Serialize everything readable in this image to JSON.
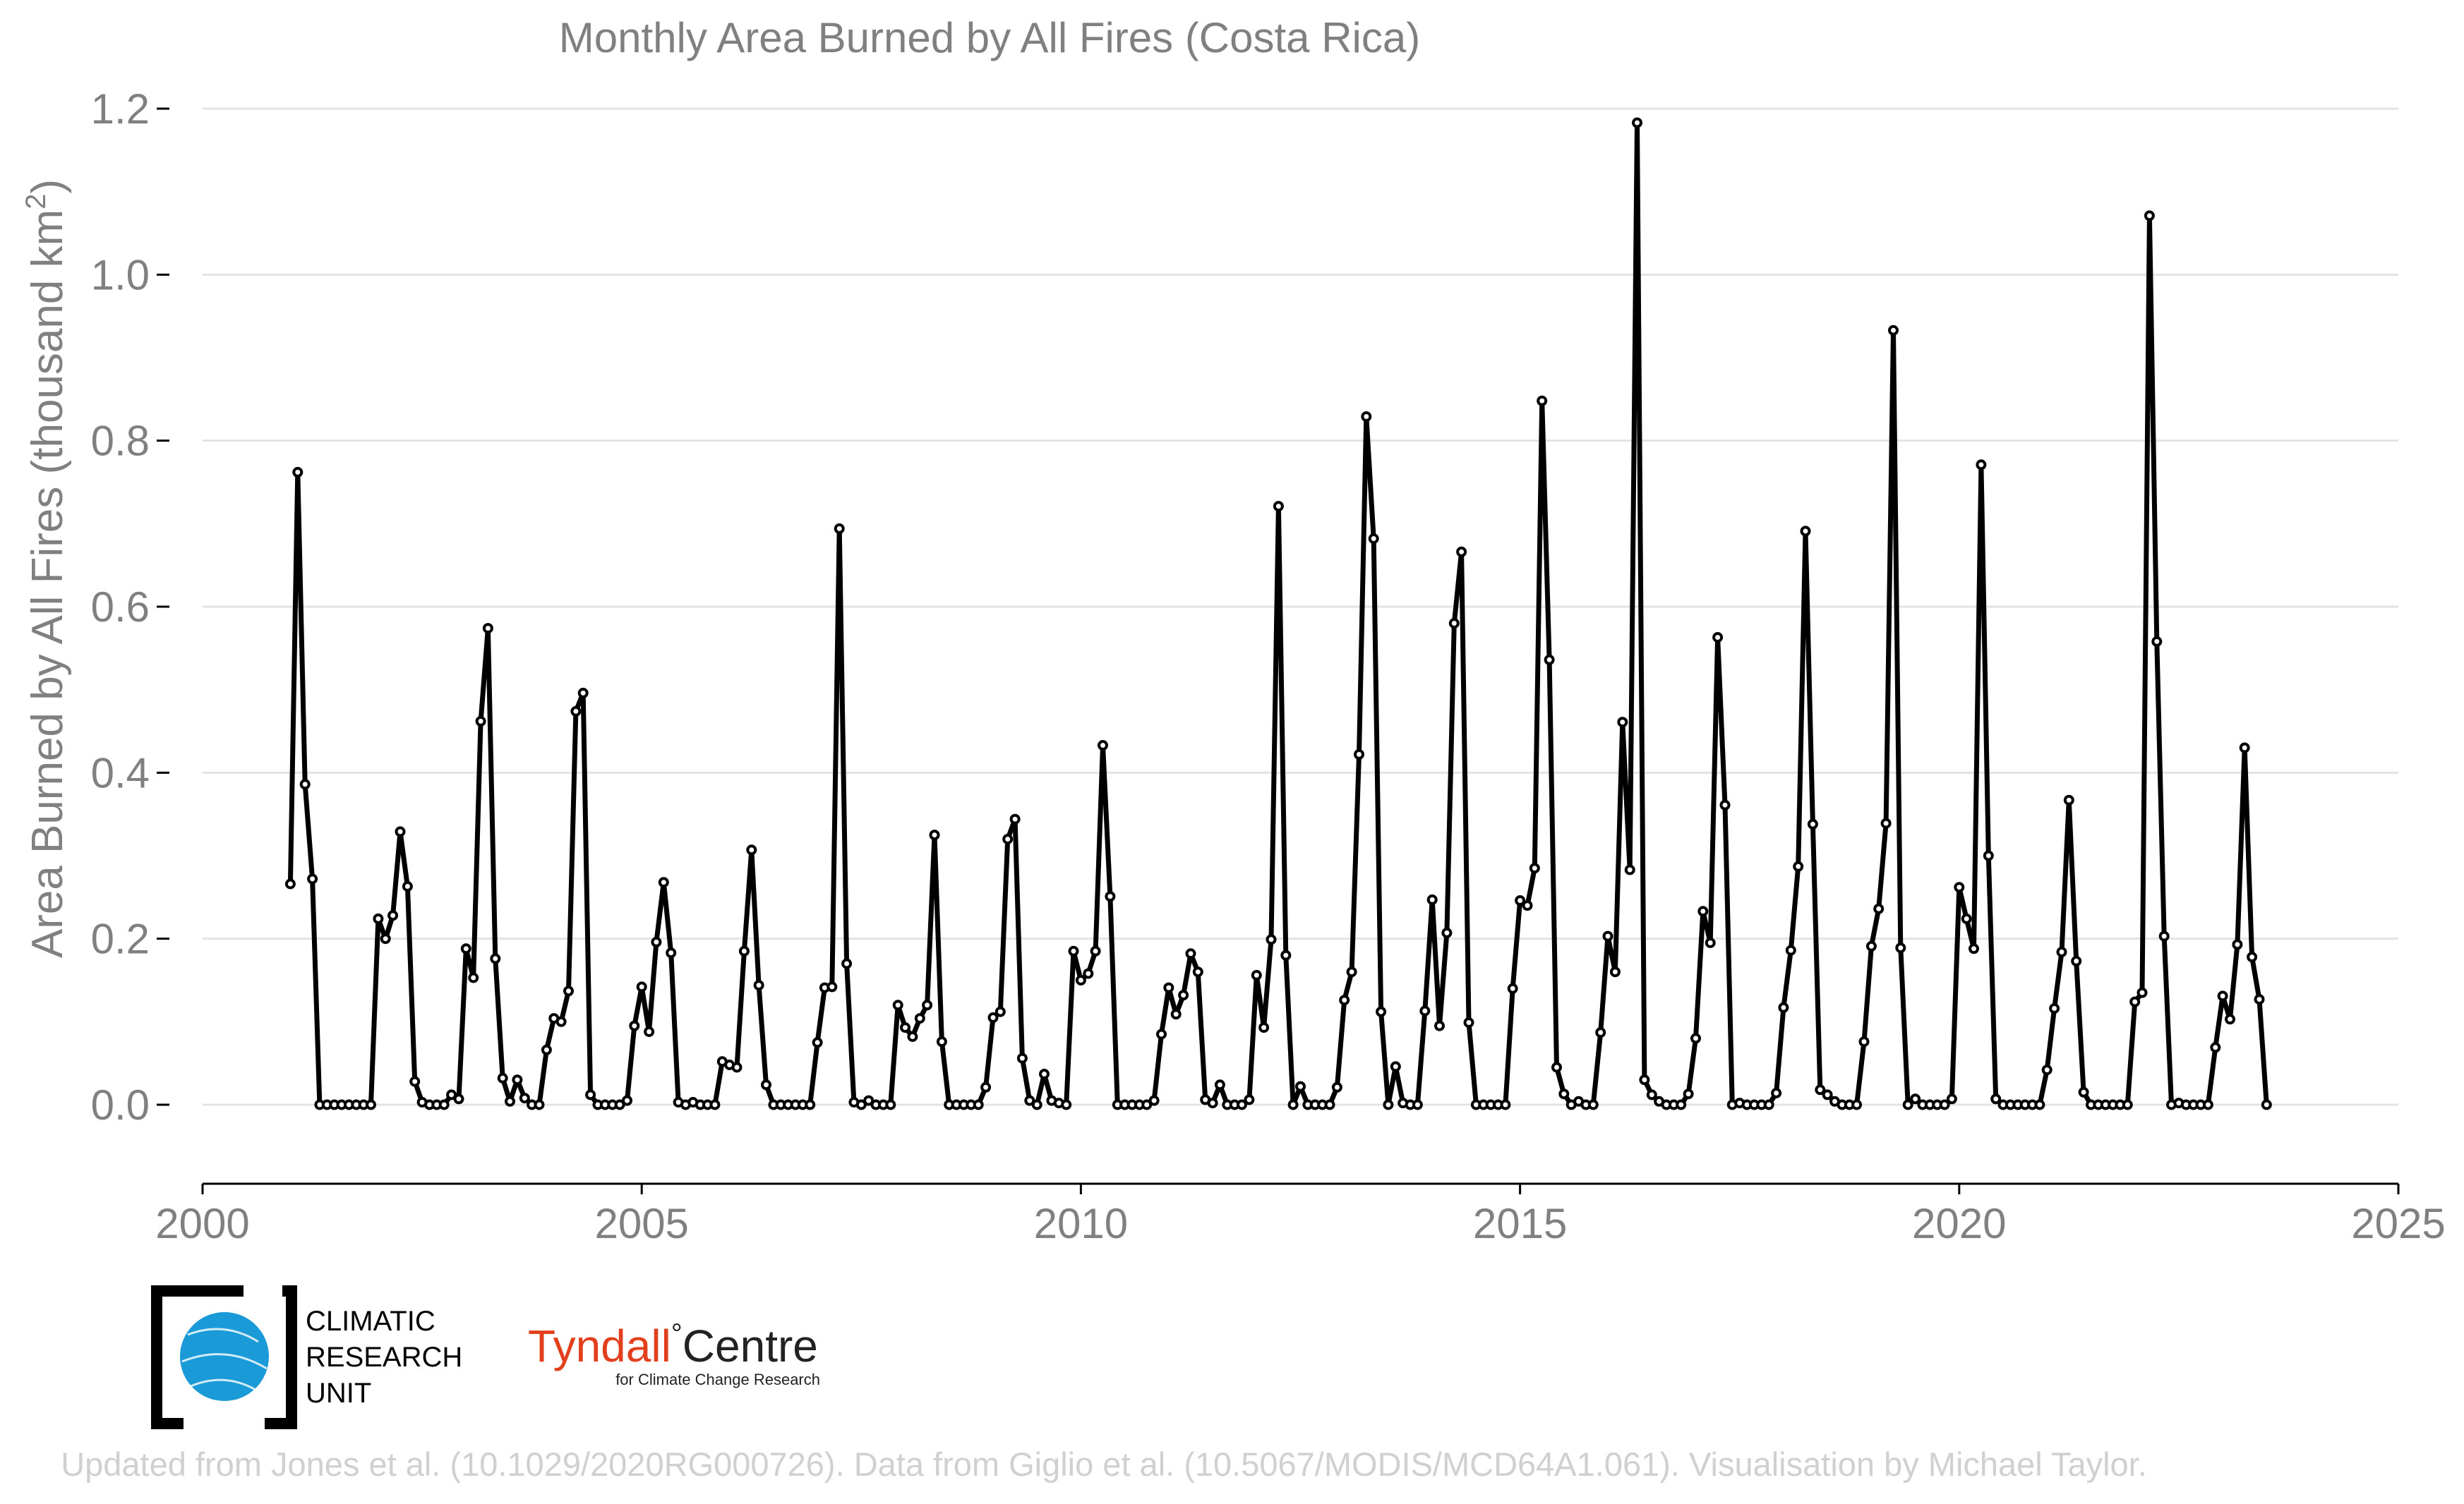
{
  "colors": {
    "line": "#000000",
    "marker_fill": "#ffffff",
    "text_gray": "#808080",
    "grid": "#e3e3e3",
    "credit": "#d0d0d0",
    "cru_blue": "#1a9ad6",
    "tyndall_red": "#e2401c"
  },
  "logos": {
    "cru": [
      "CLIMATIC",
      "RESEARCH",
      "UNIT"
    ],
    "tyndall_main_a": "Tyndall",
    "tyndall_degree": "°",
    "tyndall_main_b": "Centre",
    "tyndall_sub": "for Climate Change Research"
  },
  "credit": "Updated from Jones et al. (10.1029/2020RG000726). Data from Giglio et al. (10.5067/MODIS/MCD64A1.061). Visualisation by Michael Taylor.",
  "chart_data": {
    "type": "line",
    "title": "Monthly Area Burned by All Fires (Costa Rica)",
    "ylabel_main": "Area Burned by All Fires (thousand km",
    "ylabel_sup": "2",
    "ylabel_end": ")",
    "xlabel": "",
    "xlim": [
      2000,
      2025
    ],
    "ylim": [
      -0.09,
      1.2
    ],
    "xticks": [
      2000,
      2005,
      2010,
      2015,
      2020,
      2025
    ],
    "yticks": [
      0.0,
      0.2,
      0.4,
      0.6,
      0.8,
      1.0,
      1.2
    ],
    "ytick_labels": [
      "0.0",
      "0.2",
      "0.4",
      "0.6",
      "0.8",
      "1.0",
      "1.2"
    ],
    "grid": true,
    "legend": "none",
    "x_start": "2001-01",
    "x_step": "1 month",
    "series": [
      {
        "values": [
          0.266,
          0.762,
          0.386,
          0.272,
          0.0,
          0.0,
          0.0,
          0.0,
          0.0,
          0.0,
          0.0,
          0.0,
          0.224,
          0.2,
          0.228,
          0.329,
          0.263,
          0.028,
          0.003,
          0.0,
          0.0,
          0.0,
          0.012,
          0.007,
          0.188,
          0.153,
          0.462,
          0.574,
          0.176,
          0.032,
          0.004,
          0.03,
          0.008,
          0.0,
          0.0,
          0.066,
          0.104,
          0.1,
          0.137,
          0.474,
          0.496,
          0.012,
          0.0,
          0.0,
          0.0,
          0.0,
          0.005,
          0.095,
          0.142,
          0.088,
          0.196,
          0.268,
          0.183,
          0.003,
          0.0,
          0.003,
          0.0,
          0.0,
          0.0,
          0.052,
          0.048,
          0.045,
          0.185,
          0.307,
          0.144,
          0.024,
          0.0,
          0.0,
          0.0,
          0.0,
          0.0,
          0.0,
          0.075,
          0.141,
          0.142,
          0.694,
          0.17,
          0.003,
          0.0,
          0.005,
          0.0,
          0.0,
          0.0,
          0.12,
          0.093,
          0.082,
          0.104,
          0.12,
          0.325,
          0.076,
          0.0,
          0.0,
          0.0,
          0.0,
          0.0,
          0.021,
          0.105,
          0.112,
          0.32,
          0.344,
          0.056,
          0.005,
          0.0,
          0.037,
          0.005,
          0.002,
          0.0,
          0.185,
          0.15,
          0.158,
          0.185,
          0.433,
          0.251,
          0.0,
          0.0,
          0.0,
          0.0,
          0.0,
          0.005,
          0.085,
          0.141,
          0.109,
          0.132,
          0.182,
          0.16,
          0.006,
          0.002,
          0.024,
          0.0,
          0.0,
          0.0,
          0.006,
          0.156,
          0.093,
          0.199,
          0.721,
          0.18,
          0.0,
          0.022,
          0.0,
          0.0,
          0.0,
          0.0,
          0.021,
          0.126,
          0.16,
          0.422,
          0.829,
          0.682,
          0.112,
          0.0,
          0.046,
          0.002,
          0.0,
          0.0,
          0.113,
          0.247,
          0.095,
          0.207,
          0.58,
          0.666,
          0.099,
          0.0,
          0.0,
          0.0,
          0.0,
          0.0,
          0.14,
          0.246,
          0.24,
          0.285,
          0.848,
          0.536,
          0.045,
          0.013,
          0.0,
          0.004,
          0.0,
          0.0,
          0.087,
          0.203,
          0.16,
          0.461,
          0.283,
          1.183,
          0.03,
          0.012,
          0.004,
          0.0,
          0.0,
          0.0,
          0.013,
          0.08,
          0.233,
          0.195,
          0.563,
          0.361,
          0.0,
          0.002,
          0.0,
          0.0,
          0.0,
          0.0,
          0.014,
          0.117,
          0.186,
          0.287,
          0.691,
          0.338,
          0.018,
          0.012,
          0.004,
          0.0,
          0.0,
          0.0,
          0.076,
          0.191,
          0.236,
          0.339,
          0.933,
          0.189,
          0.0,
          0.007,
          0.0,
          0.0,
          0.0,
          0.0,
          0.007,
          0.262,
          0.224,
          0.188,
          0.771,
          0.3,
          0.007,
          0.0,
          0.0,
          0.0,
          0.0,
          0.0,
          0.0,
          0.042,
          0.116,
          0.184,
          0.367,
          0.173,
          0.015,
          0.0,
          0.0,
          0.0,
          0.0,
          0.0,
          0.0,
          0.124,
          0.135,
          1.071,
          0.558,
          0.203,
          0.0,
          0.002,
          0.0,
          0.0,
          0.0,
          0.0,
          0.069,
          0.131,
          0.103,
          0.193,
          0.43,
          0.178,
          0.127,
          0.0
        ]
      }
    ]
  }
}
